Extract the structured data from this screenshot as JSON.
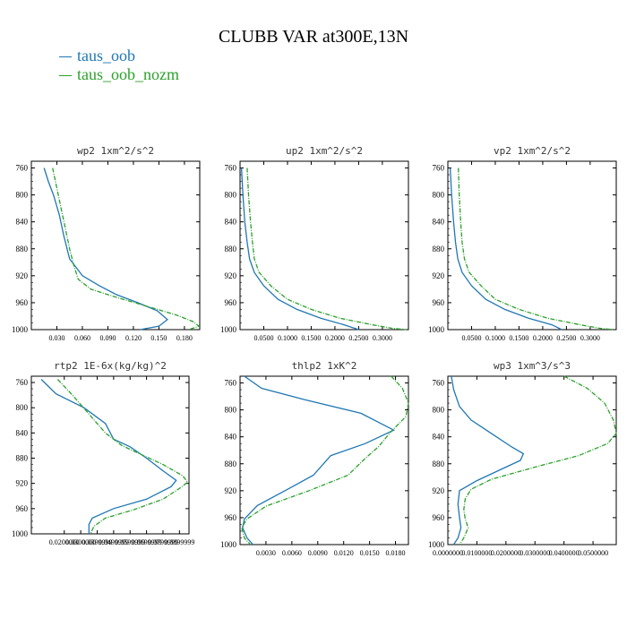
{
  "title": "CLUBB VAR at300E,13N",
  "legend": [
    {
      "label": "taus_oob",
      "color": "#1f77b4"
    },
    {
      "label": "taus_oob_nozm",
      "color": "#2ca02c"
    }
  ],
  "chart_data": [
    {
      "type": "line",
      "title": "wp2  1xm^2/s^2",
      "xlim": [
        0.0,
        0.198
      ],
      "ylim": [
        1000,
        750
      ],
      "xticks": [
        "0.030",
        "0.060",
        "0.090",
        "0.120",
        "0.150",
        "0.180"
      ],
      "xtick_values": [
        0.03,
        0.06,
        0.09,
        0.12,
        0.15,
        0.18
      ],
      "yticks": [
        760,
        800,
        840,
        880,
        920,
        960,
        1000
      ],
      "series": [
        {
          "name": "taus_oob",
          "x": [
            0.015,
            0.02,
            0.026,
            0.033,
            0.038,
            0.045,
            0.06,
            0.08,
            0.1,
            0.125,
            0.148,
            0.16,
            0.15,
            0.128
          ],
          "y": [
            760,
            780,
            800,
            830,
            860,
            895,
            920,
            935,
            948,
            960,
            972,
            985,
            995,
            1000
          ]
        },
        {
          "name": "taus_oob_nozm",
          "x": [
            0.025,
            0.03,
            0.035,
            0.04,
            0.045,
            0.05,
            0.055,
            0.07,
            0.1,
            0.135,
            0.17,
            0.19,
            0.197,
            0.185
          ],
          "y": [
            760,
            790,
            820,
            850,
            880,
            905,
            925,
            940,
            952,
            965,
            978,
            988,
            995,
            1000
          ]
        }
      ]
    },
    {
      "type": "line",
      "title": "up2  1xm^2/s^2",
      "xlim": [
        0.0,
        0.355
      ],
      "ylim": [
        1000,
        750
      ],
      "xticks": [
        "0.0500",
        "0.1000",
        "0.1500",
        "0.2000",
        "0.2500",
        "0.3000"
      ],
      "xtick_values": [
        0.05,
        0.1,
        0.15,
        0.2,
        0.25,
        0.3
      ],
      "yticks": [
        760,
        800,
        840,
        880,
        920,
        960,
        1000
      ],
      "series": [
        {
          "name": "taus_oob",
          "x": [
            0.003,
            0.006,
            0.01,
            0.015,
            0.02,
            0.03,
            0.05,
            0.08,
            0.12,
            0.17,
            0.22,
            0.25
          ],
          "y": [
            760,
            800,
            840,
            870,
            895,
            915,
            935,
            955,
            970,
            983,
            993,
            1000
          ]
        },
        {
          "name": "taus_oob_nozm",
          "x": [
            0.015,
            0.018,
            0.022,
            0.026,
            0.03,
            0.04,
            0.065,
            0.1,
            0.15,
            0.21,
            0.28,
            0.32,
            0.35
          ],
          "y": [
            760,
            800,
            840,
            870,
            895,
            915,
            935,
            955,
            970,
            983,
            993,
            998,
            1000
          ]
        }
      ]
    },
    {
      "type": "line",
      "title": "vp2  1xm^2/s^2",
      "xlim": [
        0.0,
        0.355
      ],
      "ylim": [
        1000,
        750
      ],
      "xticks": [
        "0.0500",
        "0.1000",
        "0.1500",
        "0.2000",
        "0.2500",
        "0.3000"
      ],
      "xtick_values": [
        0.05,
        0.1,
        0.15,
        0.2,
        0.25,
        0.3
      ],
      "yticks": [
        760,
        800,
        840,
        880,
        920,
        960,
        1000
      ],
      "series": [
        {
          "name": "taus_oob",
          "x": [
            0.005,
            0.008,
            0.012,
            0.016,
            0.021,
            0.03,
            0.05,
            0.08,
            0.12,
            0.17,
            0.22,
            0.24
          ],
          "y": [
            760,
            800,
            840,
            870,
            895,
            915,
            935,
            955,
            970,
            983,
            993,
            1000
          ]
        },
        {
          "name": "taus_oob_nozm",
          "x": [
            0.022,
            0.024,
            0.027,
            0.03,
            0.035,
            0.045,
            0.07,
            0.1,
            0.15,
            0.21,
            0.28,
            0.32,
            0.35
          ],
          "y": [
            760,
            800,
            840,
            870,
            895,
            915,
            935,
            955,
            970,
            983,
            993,
            998,
            1000
          ]
        }
      ]
    },
    {
      "type": "line",
      "title": "rtp2  1E-6x(kg/kg)^2",
      "xlim": [
        0.0,
        0.0958
      ],
      "ylim": [
        1000,
        750
      ],
      "xticks": [
        "0.0200000",
        "0.0300000",
        "0.0399999",
        "0.0499999",
        "0.0599999",
        "0.0699999",
        "0.0799999",
        "0.0899999"
      ],
      "xtick_values": [
        0.02,
        0.03,
        0.04,
        0.05,
        0.06,
        0.07,
        0.08,
        0.09
      ],
      "yticks": [
        760,
        800,
        840,
        880,
        920,
        960,
        1000
      ],
      "series": [
        {
          "name": "taus_oob",
          "x": [
            0.006,
            0.015,
            0.032,
            0.045,
            0.05,
            0.06,
            0.07,
            0.08,
            0.088,
            0.085,
            0.07,
            0.05,
            0.037,
            0.035,
            0.035
          ],
          "y": [
            755,
            778,
            800,
            825,
            850,
            862,
            880,
            900,
            915,
            925,
            945,
            960,
            975,
            985,
            1000
          ]
        },
        {
          "name": "taus_oob_nozm",
          "x": [
            0.016,
            0.025,
            0.035,
            0.045,
            0.055,
            0.065,
            0.08,
            0.092,
            0.095,
            0.09,
            0.08,
            0.062,
            0.045,
            0.038,
            0.036
          ],
          "y": [
            755,
            780,
            810,
            840,
            860,
            872,
            890,
            908,
            918,
            928,
            945,
            962,
            975,
            988,
            1000
          ]
        }
      ]
    },
    {
      "type": "line",
      "title": "thlp2  1xK^2",
      "xlim": [
        0.0,
        0.0195
      ],
      "ylim": [
        1000,
        750
      ],
      "xticks": [
        "0.0030",
        "0.0060",
        "0.0090",
        "0.0120",
        "0.0150",
        "0.0180"
      ],
      "xtick_values": [
        0.003,
        0.006,
        0.009,
        0.012,
        0.015,
        0.018
      ],
      "yticks": [
        760,
        800,
        840,
        880,
        920,
        960,
        1000
      ],
      "series": [
        {
          "name": "taus_oob",
          "x": [
            0.0005,
            0.0025,
            0.0075,
            0.014,
            0.0178,
            0.0145,
            0.0105,
            0.0085,
            0.0055,
            0.002,
            0.0005,
            0.0003,
            0.0008,
            0.0015
          ],
          "y": [
            750,
            768,
            785,
            805,
            830,
            850,
            868,
            897,
            918,
            942,
            962,
            975,
            990,
            1000
          ]
        },
        {
          "name": "taus_oob_nozm",
          "x": [
            0.0175,
            0.0188,
            0.0195,
            0.0192,
            0.0175,
            0.016,
            0.0145,
            0.0125,
            0.008,
            0.003,
            0.0008,
            0.0002,
            0.0005,
            0.0012
          ],
          "y": [
            750,
            768,
            790,
            810,
            832,
            855,
            872,
            897,
            920,
            943,
            962,
            975,
            990,
            1000
          ]
        }
      ]
    },
    {
      "type": "line",
      "title": "wp3  1xm^3/s^3",
      "xlim": [
        0.0,
        0.058
      ],
      "ylim": [
        1000,
        750
      ],
      "xticks": [
        "0.0000000",
        "0.0100000",
        "0.0200000",
        "0.0300000",
        "0.0400000",
        "0.0500000"
      ],
      "xtick_values": [
        0.0,
        0.01,
        0.02,
        0.03,
        0.04,
        0.05
      ],
      "yticks": [
        760,
        800,
        840,
        880,
        920,
        960,
        1000
      ],
      "series": [
        {
          "name": "taus_oob",
          "x": [
            0.0012,
            0.002,
            0.004,
            0.008,
            0.015,
            0.022,
            0.026,
            0.025,
            0.02,
            0.01,
            0.004,
            0.0035,
            0.004,
            0.0045,
            0.0035,
            0.002
          ],
          "y": [
            750,
            770,
            795,
            815,
            835,
            855,
            865,
            875,
            885,
            905,
            920,
            940,
            960,
            975,
            990,
            1000
          ]
        },
        {
          "name": "taus_oob_nozm",
          "x": [
            0.04,
            0.048,
            0.054,
            0.057,
            0.058,
            0.055,
            0.045,
            0.03,
            0.015,
            0.008,
            0.006,
            0.0055,
            0.006,
            0.007,
            0.0055,
            0.004
          ],
          "y": [
            750,
            768,
            790,
            815,
            835,
            850,
            868,
            885,
            903,
            918,
            932,
            948,
            962,
            975,
            990,
            1000
          ]
        }
      ]
    }
  ]
}
